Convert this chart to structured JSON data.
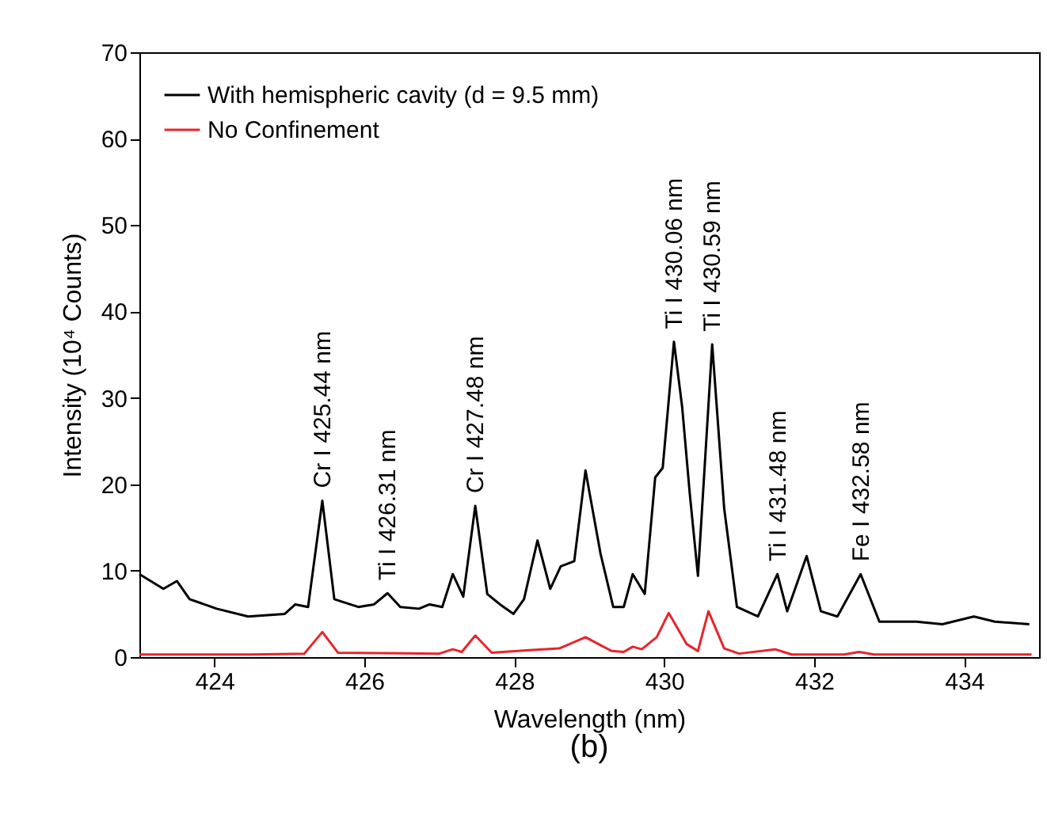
{
  "chart_data": {
    "type": "line",
    "title": "(b)",
    "xlabel": "Wavelength (nm)",
    "ylabel": "Intensity (10⁴ Counts)",
    "xlim": [
      423,
      435
    ],
    "xticks": [
      424,
      426,
      428,
      430,
      432,
      434
    ],
    "ylim": [
      0,
      70
    ],
    "yticks": [
      0,
      10,
      20,
      30,
      40,
      50,
      60,
      70
    ],
    "grid": false,
    "legend": "top left",
    "line_style": "solid",
    "marker": "none",
    "series": [
      {
        "name": "With hemispheric cavity (d = 9.5 mm)",
        "color": "#000000",
        "x": [
          423.0,
          423.32,
          423.5,
          423.67,
          424.03,
          424.45,
          424.94,
          425.08,
          425.25,
          425.44,
          425.6,
          425.92,
          426.13,
          426.31,
          426.48,
          426.73,
          426.87,
          427.04,
          427.18,
          427.32,
          427.48,
          427.64,
          427.81,
          427.99,
          428.13,
          428.31,
          428.48,
          428.62,
          428.8,
          428.95,
          429.15,
          429.32,
          429.46,
          429.58,
          429.74,
          429.88,
          429.98,
          430.13,
          430.24,
          430.34,
          430.45,
          430.64,
          430.8,
          430.97,
          431.25,
          431.51,
          431.64,
          431.9,
          432.09,
          432.31,
          432.62,
          432.87,
          433.36,
          433.71,
          434.13,
          434.41,
          434.87
        ],
        "values": [
          9.6,
          7.9,
          8.8,
          6.7,
          5.6,
          4.7,
          5.0,
          6.1,
          5.8,
          18.1,
          6.7,
          5.8,
          6.1,
          7.4,
          5.8,
          5.6,
          6.1,
          5.8,
          9.6,
          7.0,
          17.5,
          7.3,
          6.1,
          5.0,
          6.7,
          13.5,
          7.9,
          10.5,
          11.1,
          21.6,
          12.0,
          5.8,
          5.8,
          9.6,
          7.3,
          20.8,
          21.9,
          36.5,
          28.9,
          19.0,
          9.4,
          36.2,
          17.2,
          5.8,
          4.7,
          9.6,
          5.3,
          11.7,
          5.3,
          4.7,
          9.6,
          4.1,
          4.1,
          3.8,
          4.7,
          4.1,
          3.8
        ]
      },
      {
        "name": "No Confinement",
        "color": "#e8242c",
        "x": [
          423.0,
          424.5,
          425.2,
          425.44,
          425.65,
          427.0,
          427.18,
          427.3,
          427.48,
          427.7,
          428.2,
          428.6,
          428.95,
          429.3,
          429.46,
          429.58,
          429.7,
          429.9,
          430.06,
          430.3,
          430.45,
          430.59,
          430.8,
          431.0,
          431.48,
          431.7,
          432.4,
          432.6,
          432.8,
          434.9
        ],
        "values": [
          0.3,
          0.3,
          0.4,
          2.9,
          0.5,
          0.4,
          0.9,
          0.6,
          2.5,
          0.5,
          0.8,
          1.0,
          2.3,
          0.7,
          0.6,
          1.2,
          0.9,
          2.3,
          5.1,
          1.5,
          0.7,
          5.3,
          1.0,
          0.4,
          0.9,
          0.3,
          0.3,
          0.6,
          0.3,
          0.3
        ]
      }
    ],
    "annotations": [
      {
        "text": "Cr I 425.44 nm",
        "x": 425.44,
        "y": 18.1
      },
      {
        "text": "Ti I 426.31 nm",
        "x": 426.31,
        "y": 7.4
      },
      {
        "text": "Cr I 427.48 nm",
        "x": 427.48,
        "y": 17.5
      },
      {
        "text": "Ti I 430.06 nm",
        "x": 430.13,
        "y": 36.5
      },
      {
        "text": "Ti I 430.59 nm",
        "x": 430.64,
        "y": 36.2
      },
      {
        "text": "Ti I 431.48 nm",
        "x": 431.51,
        "y": 9.6
      },
      {
        "text": "Fe I 432.58 nm",
        "x": 432.62,
        "y": 9.6
      }
    ]
  }
}
